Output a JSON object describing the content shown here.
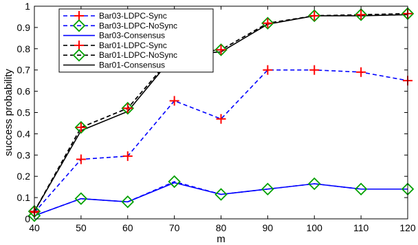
{
  "chart_data": {
    "type": "line",
    "title": "",
    "xlabel": "m",
    "ylabel": "success probability",
    "xlim": [
      40,
      120
    ],
    "ylim": [
      0,
      1
    ],
    "xticks": [
      40,
      50,
      60,
      70,
      80,
      90,
      100,
      110,
      120
    ],
    "yticks": [
      0,
      0.1,
      0.2,
      0.3,
      0.4,
      0.5,
      0.6,
      0.7,
      0.8,
      0.9,
      1
    ],
    "grid": false,
    "legend_position": "top-left",
    "x": [
      40,
      50,
      60,
      70,
      80,
      90,
      100,
      110,
      120
    ],
    "series": [
      {
        "name": "Bar03-LDPC-Sync",
        "color": "#0000ff",
        "line": "dashed",
        "marker": "plus",
        "marker_color": "#ff0000",
        "values": [
          0.03,
          0.28,
          0.295,
          0.555,
          0.47,
          0.7,
          0.7,
          0.69,
          0.65
        ]
      },
      {
        "name": "Bar03-LDPC-NoSync",
        "color": "#0000ff",
        "line": "dashed",
        "marker": "diamond",
        "marker_color": "#00a000",
        "values": [
          0.015,
          0.095,
          0.08,
          0.175,
          0.115,
          0.14,
          0.165,
          0.14,
          0.14
        ]
      },
      {
        "name": "Bar03-Consensus",
        "color": "#0000ff",
        "line": "solid",
        "marker": "none",
        "values": [
          0.015,
          0.095,
          0.08,
          0.17,
          0.115,
          0.14,
          0.165,
          0.14,
          0.14
        ]
      },
      {
        "name": "Bar01-LDPC-Sync",
        "color": "#000000",
        "line": "dashed",
        "marker": "plus",
        "marker_color": "#ff0000",
        "values": [
          0.035,
          0.43,
          0.52,
          0.775,
          0.795,
          0.92,
          0.955,
          0.96,
          0.965
        ]
      },
      {
        "name": "Bar01-LDPC-NoSync",
        "color": "#000000",
        "line": "dashed",
        "marker": "diamond",
        "marker_color": "#00a000",
        "values": [
          0.035,
          0.43,
          0.52,
          0.775,
          0.795,
          0.92,
          0.955,
          0.96,
          0.965
        ]
      },
      {
        "name": "Bar01-Consensus",
        "color": "#000000",
        "line": "solid",
        "marker": "none",
        "values": [
          0.035,
          0.415,
          0.505,
          0.77,
          0.785,
          0.915,
          0.955,
          0.955,
          0.96
        ]
      }
    ]
  }
}
